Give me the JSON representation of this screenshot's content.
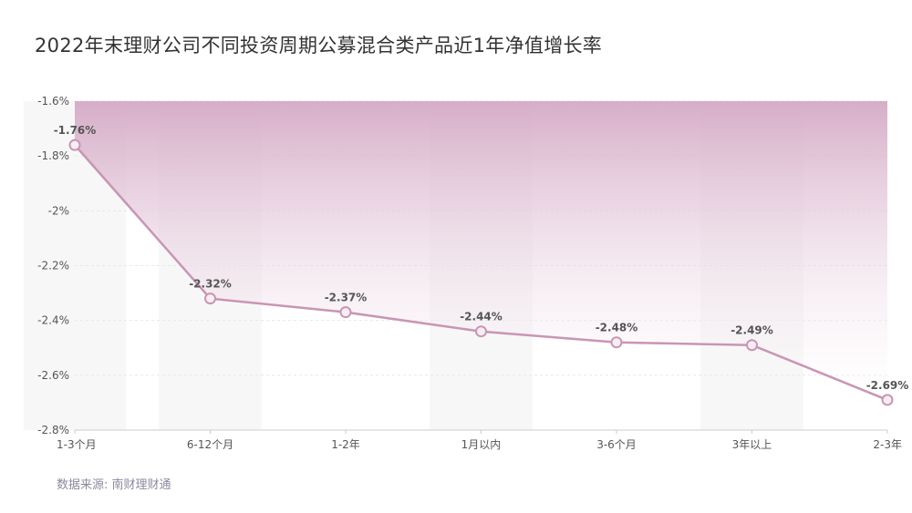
{
  "title": "2022年末理财公司不同投资周期公募混合类产品近1年净值增长率",
  "source": "数据来源: 南财理财通",
  "colors": {
    "line": "#c995b4",
    "area_top": "#d4a9c5",
    "area_bottom": "#ffffff",
    "point": "#f7eef4",
    "grid": "#e8e8e8",
    "band": "#f7f7f7"
  },
  "chart_data": {
    "type": "area",
    "categories": [
      "1-3个月",
      "6-12个月",
      "1-2年",
      "1月以内",
      "3-6个月",
      "3年以上",
      "2-3年"
    ],
    "series": [
      {
        "values": [
          -1.76,
          -2.32,
          -2.37,
          -2.44,
          -2.48,
          -2.49,
          -2.69
        ]
      }
    ],
    "data_labels": [
      "-1.76%",
      "-2.32%",
      "-2.37%",
      "-2.44%",
      "-2.48%",
      "-2.49%",
      "-2.69%"
    ],
    "yticks": [
      -1.6,
      -1.8,
      -2,
      -2.2,
      -2.4,
      -2.6,
      -2.8
    ],
    "ytick_labels": [
      "-1.6%",
      "-1.8%",
      "-2%",
      "-2.2%",
      "-2.4%",
      "-2.6%",
      "-2.8%"
    ],
    "ylim": [
      -2.8,
      -1.6
    ],
    "grid": true,
    "legend": "none"
  }
}
